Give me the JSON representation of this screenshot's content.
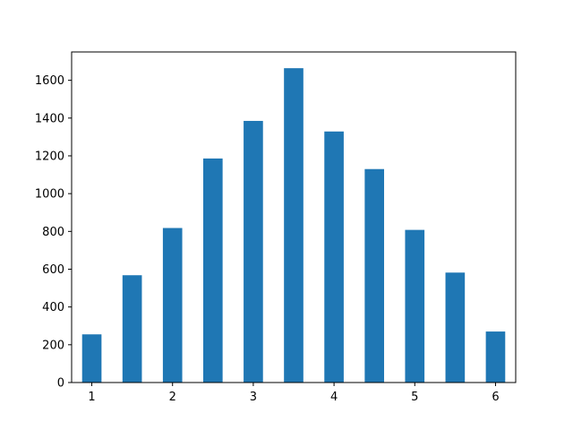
{
  "chart_data": {
    "type": "bar",
    "title": "",
    "xlabel": "",
    "ylabel": "",
    "x": [
      1.0,
      1.5,
      2.0,
      2.5,
      3.0,
      3.5,
      4.0,
      4.5,
      5.0,
      5.5,
      6.0
    ],
    "values": [
      255,
      568,
      818,
      1186,
      1385,
      1664,
      1329,
      1130,
      808,
      582,
      270
    ],
    "bar_width": 0.24,
    "xlim": [
      0.75,
      6.25
    ],
    "ylim": [
      0,
      1750
    ],
    "xticks": [
      1,
      2,
      3,
      4,
      5,
      6
    ],
    "yticks": [
      0,
      200,
      400,
      600,
      800,
      1000,
      1200,
      1400,
      1600
    ],
    "bar_color": "#1f77b4",
    "grid": false,
    "legend": "none"
  }
}
